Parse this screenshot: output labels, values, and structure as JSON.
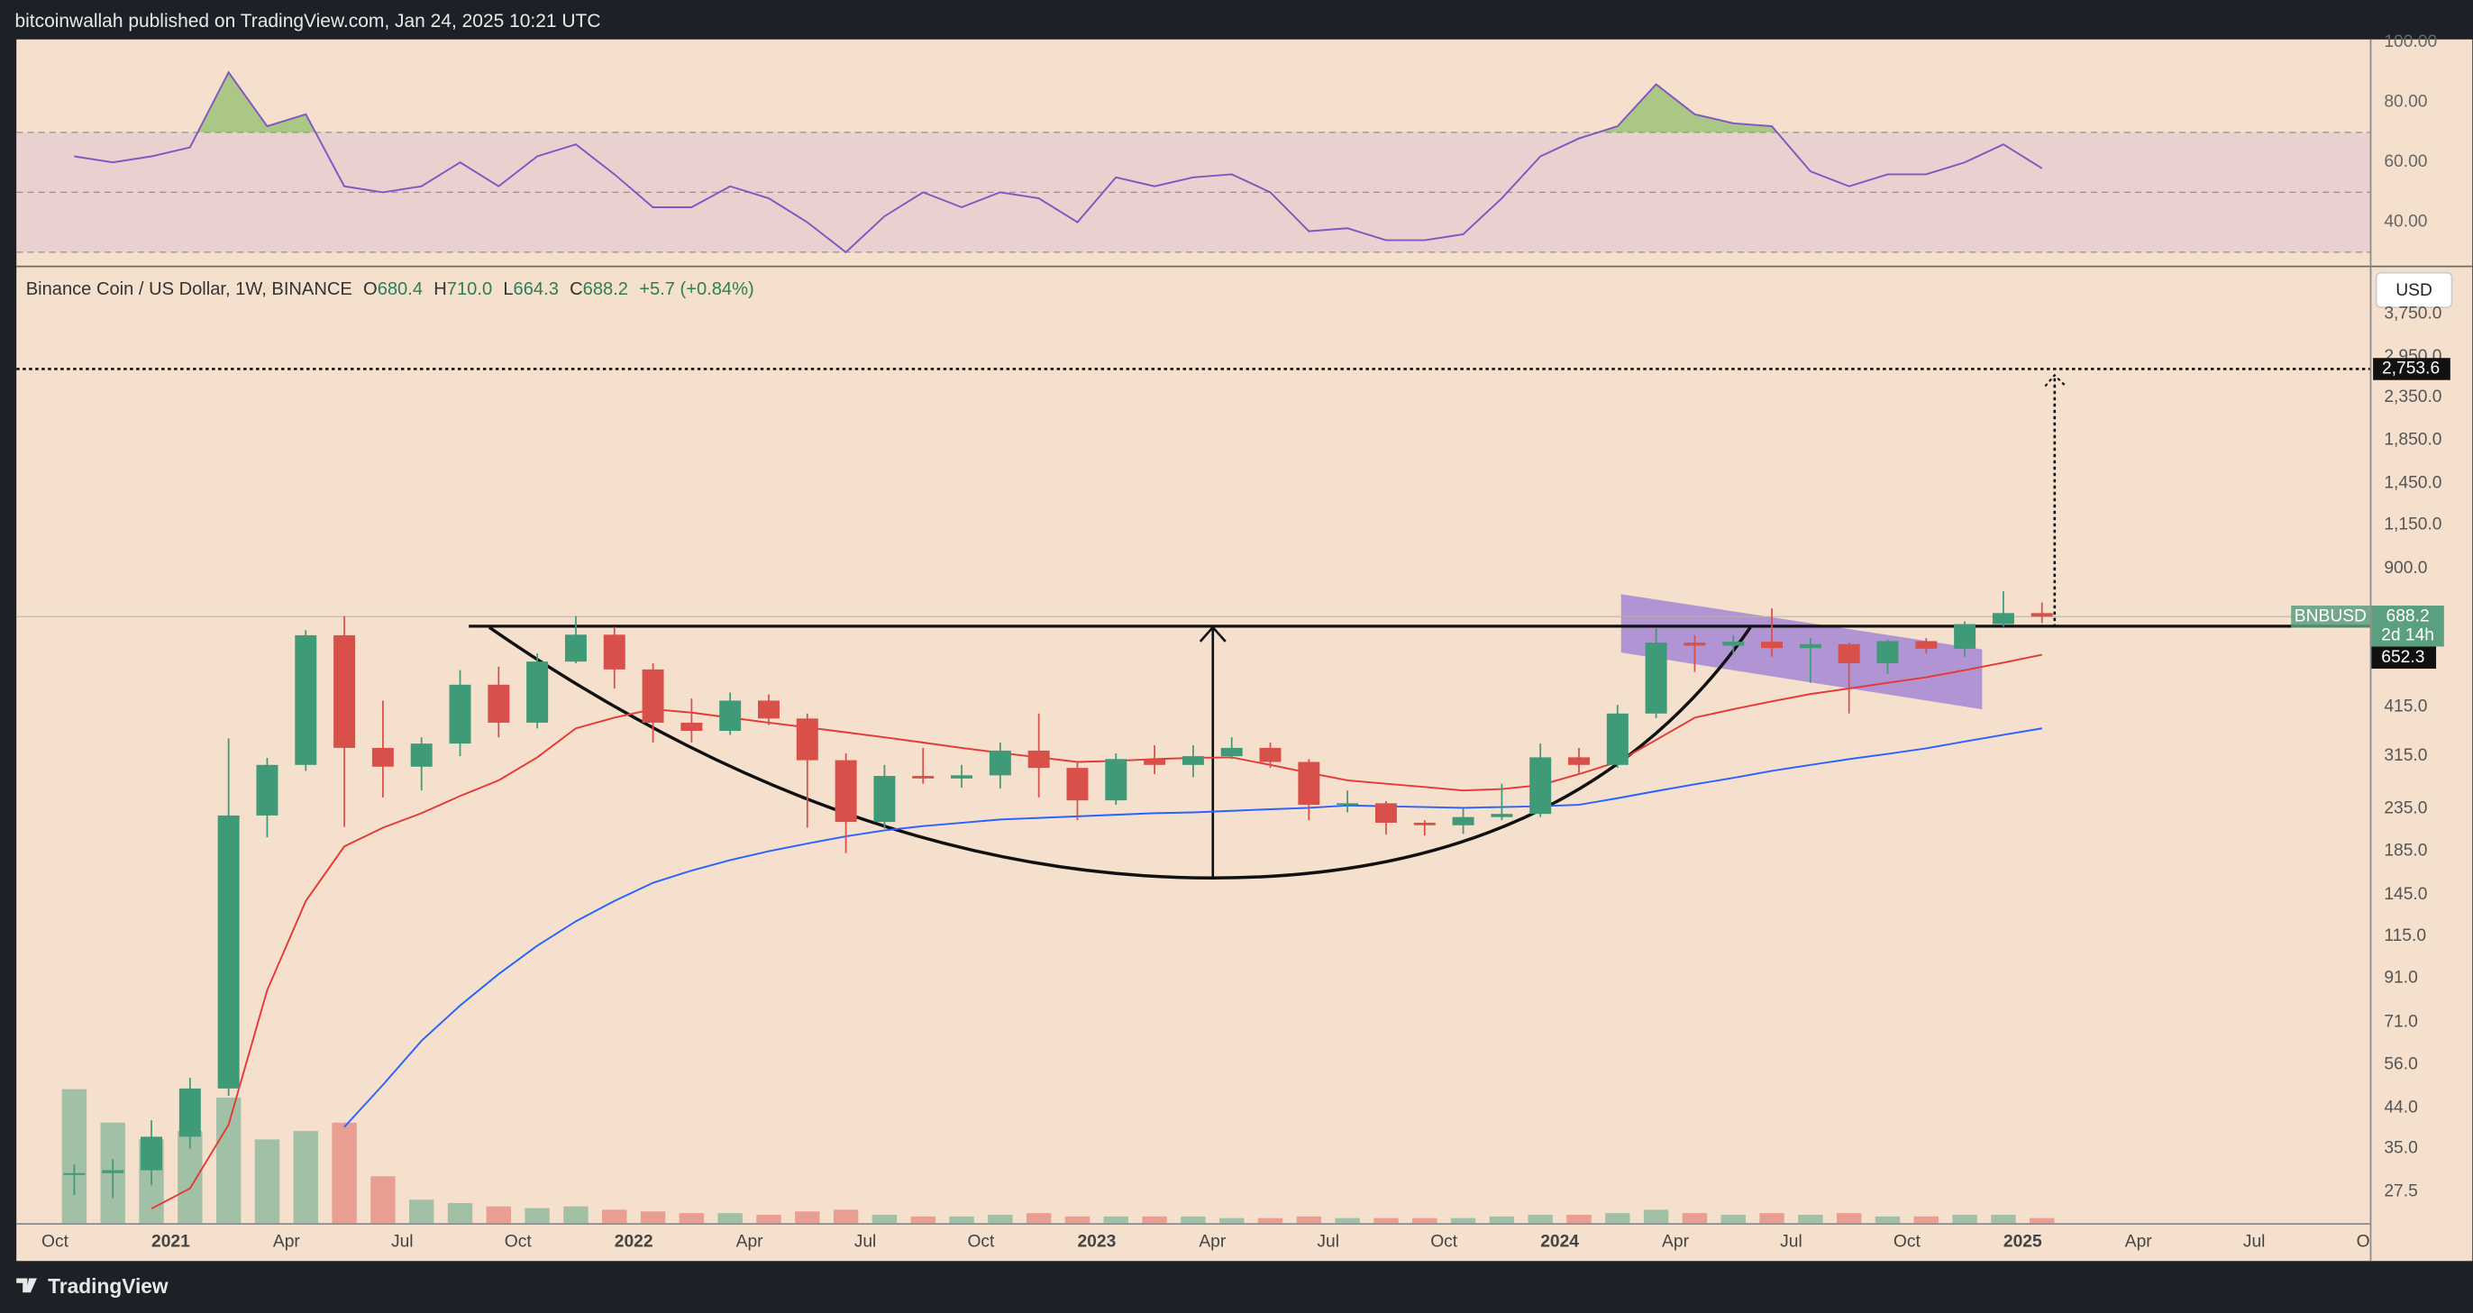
{
  "header": {
    "publisher": "bitcoinwallah published on TradingView.com, Jan 24, 2025 10:21 UTC"
  },
  "chart_data": [
    {
      "type": "candlestick",
      "title": "Binance Coin / US Dollar, 1W, BINANCE",
      "legend": [
        {
          "key": "O",
          "value": "680.4"
        },
        {
          "key": "H",
          "value": "710.0"
        },
        {
          "key": "L",
          "value": "664.3"
        },
        {
          "key": "C",
          "value": "688.2"
        }
      ],
      "change": "+5.7 (+0.84%)",
      "currency": "USD",
      "x": [
        "2020-10",
        "2020-11",
        "2020-12",
        "2021-01",
        "2021-02",
        "2021-03",
        "2021-04",
        "2021-05",
        "2021-06",
        "2021-07",
        "2021-08",
        "2021-09",
        "2021-10",
        "2021-11",
        "2021-12",
        "2022-01",
        "2022-02",
        "2022-03",
        "2022-04",
        "2022-05",
        "2022-06",
        "2022-07",
        "2022-08",
        "2022-09",
        "2022-10",
        "2022-11",
        "2022-12",
        "2023-01",
        "2023-02",
        "2023-03",
        "2023-04",
        "2023-05",
        "2023-06",
        "2023-07",
        "2023-08",
        "2023-09",
        "2023-10",
        "2023-11",
        "2023-12",
        "2024-01",
        "2024-02",
        "2024-03",
        "2024-04",
        "2024-05",
        "2024-06",
        "2024-07",
        "2024-08",
        "2024-09",
        "2024-10",
        "2024-11",
        "2024-12",
        "2025-01"
      ],
      "open": [
        30.2,
        30.5,
        31,
        37.4,
        49,
        226,
        300,
        620,
        330,
        297,
        338,
        470,
        380,
        535,
        622,
        512,
        380,
        363,
        430,
        389,
        308,
        218,
        282,
        278,
        283,
        325,
        295,
        246,
        310,
        300,
        315,
        330,
        305,
        240,
        242,
        217,
        214,
        224,
        228,
        313,
        300,
        400,
        595,
        585,
        598,
        577,
        590,
        530,
        600,
        575,
        660,
        702
      ],
      "high": [
        32,
        33,
        41,
        52,
        348,
        312,
        638,
        690,
        430,
        350,
        510,
        520,
        560,
        690,
        650,
        530,
        435,
        450,
        445,
        400,
        320,
        300,
        330,
        300,
        340,
        400,
        305,
        320,
        335,
        335,
        350,
        340,
        310,
        260,
        245,
        220,
        235,
        270,
        338,
        330,
        420,
        645,
        620,
        620,
        720,
        610,
        595,
        605,
        610,
        670,
        793,
        745
      ],
      "low": [
        27,
        26.5,
        28.5,
        35,
        47,
        200,
        290,
        212,
        250,
        260,
        315,
        350,
        368,
        530,
        460,
        340,
        340,
        355,
        375,
        211,
        183,
        210,
        270,
        264,
        263,
        250,
        220,
        240,
        285,
        280,
        310,
        295,
        220,
        230,
        203,
        202,
        204,
        220,
        224,
        284,
        295,
        390,
        505,
        560,
        550,
        475,
        400,
        500,
        560,
        550,
        650,
        664
      ],
      "close": [
        30.5,
        31,
        37.4,
        49,
        226,
        300,
        620,
        330,
        297,
        338,
        470,
        380,
        535,
        622,
        512,
        380,
        363,
        430,
        389,
        308,
        218,
        282,
        278,
        283,
        325,
        295,
        246,
        310,
        300,
        315,
        330,
        305,
        240,
        242,
        217,
        214,
        224,
        228,
        313,
        300,
        400,
        595,
        585,
        598,
        577,
        590,
        530,
        600,
        575,
        660,
        702,
        688.2
      ],
      "volume": [
        80,
        60,
        50,
        55,
        75,
        50,
        55,
        60,
        28,
        14,
        12,
        10,
        9,
        10,
        8,
        7,
        6,
        6,
        5,
        7,
        8,
        5,
        4,
        4,
        5,
        6,
        4,
        4,
        4,
        4,
        3,
        3,
        4,
        3,
        3,
        3,
        3,
        4,
        5,
        5,
        6,
        8,
        6,
        5,
        6,
        5,
        6,
        4,
        4,
        5,
        5,
        3
      ],
      "up_color": "#3f9a78",
      "down_color": "#d9504a",
      "series": [
        {
          "color": "#e53935",
          "values": [
            null,
            null,
            25,
            28,
            40,
            85,
            140,
            190,
            211,
            229,
            252,
            275,
            313,
            368,
            391,
            410,
            402,
            391,
            380,
            370,
            360,
            350,
            340,
            330,
            321,
            313,
            305,
            307,
            310,
            312,
            313,
            300,
            287,
            275,
            270,
            265,
            260,
            262,
            268,
            285,
            305,
            345,
            391,
            410,
            428,
            446,
            460,
            475,
            490,
            510,
            532,
            556
          ]
        },
        {
          "color": "#2962ff",
          "values": [
            null,
            null,
            null,
            null,
            null,
            null,
            null,
            39.5,
            50,
            64,
            78,
            93,
            109,
            125,
            140,
            155,
            166,
            176,
            185,
            193,
            201,
            208,
            213,
            217,
            221,
            223,
            225,
            227,
            229,
            230,
            232,
            234,
            236,
            239,
            238,
            237,
            236,
            237,
            238,
            240,
            249,
            259,
            269,
            279,
            290,
            300,
            310,
            319,
            329,
            342,
            355,
            368
          ]
        }
      ],
      "log_scale": true,
      "ylim": [
        23.05,
        4849
      ],
      "yticks": [
        27.5,
        {
          "value": 35,
          "label": "35.0"
        },
        {
          "value": 44,
          "label": "44.0"
        },
        {
          "value": 56,
          "label": "56.0"
        },
        {
          "value": 71,
          "label": "71.0"
        },
        {
          "value": 91,
          "label": "91.0"
        },
        {
          "value": 115,
          "label": "115.0"
        },
        {
          "value": 145,
          "label": "145.0"
        },
        {
          "value": 185,
          "label": "185.0"
        },
        {
          "value": 235,
          "label": "235.0"
        },
        {
          "value": 315,
          "label": "315.0"
        },
        {
          "value": 415,
          "label": "415.0"
        },
        {
          "value": 900,
          "label": "900.0"
        },
        {
          "value": 1150,
          "label": "1,150.0"
        },
        {
          "value": 1450,
          "label": "1,450.0"
        },
        {
          "value": 1850,
          "label": "1,850.0"
        },
        {
          "value": 2350,
          "label": "2,350.0"
        },
        {
          "value": 2950,
          "label": "2,950.0"
        },
        {
          "value": 3750,
          "label": "3,750.0"
        }
      ],
      "xlim": [
        "2020-09",
        "2025-10"
      ],
      "xticks": [
        {
          "value": "2020-10",
          "label": "Oct"
        },
        {
          "value": "2021-01",
          "label": "2021"
        },
        {
          "value": "2021-04",
          "label": "Apr"
        },
        {
          "value": "2021-07",
          "label": "Jul"
        },
        {
          "value": "2021-10",
          "label": "Oct"
        },
        {
          "value": "2022-01",
          "label": "2022"
        },
        {
          "value": "2022-04",
          "label": "Apr"
        },
        {
          "value": "2022-07",
          "label": "Jul"
        },
        {
          "value": "2022-10",
          "label": "Oct"
        },
        {
          "value": "2023-01",
          "label": "2023"
        },
        {
          "value": "2023-04",
          "label": "Apr"
        },
        {
          "value": "2023-07",
          "label": "Jul"
        },
        {
          "value": "2023-10",
          "label": "Oct"
        },
        {
          "value": "2024-01",
          "label": "2024"
        },
        {
          "value": "2024-04",
          "label": "Apr"
        },
        {
          "value": "2024-07",
          "label": "Jul"
        },
        {
          "value": "2024-10",
          "label": "Oct"
        },
        {
          "value": "2025-01",
          "label": "2025"
        },
        {
          "value": "2025-04",
          "label": "Apr"
        },
        {
          "value": "2025-07",
          "label": "Jul"
        },
        {
          "value": "2025-10",
          "label": "Oct"
        }
      ],
      "price_label": {
        "symbol": "BNBUSD",
        "value": 688.2,
        "countdown": "2d 14h",
        "color": "#5a9f7e"
      },
      "neckline": 652.3,
      "target": {
        "value": 2753.6,
        "label": "2,753.6"
      }
    },
    {
      "type": "line",
      "x": [
        "2020-10",
        "2020-11",
        "2020-12",
        "2021-01",
        "2021-02",
        "2021-03",
        "2021-04",
        "2021-05",
        "2021-06",
        "2021-07",
        "2021-08",
        "2021-09",
        "2021-10",
        "2021-11",
        "2021-12",
        "2022-01",
        "2022-02",
        "2022-03",
        "2022-04",
        "2022-05",
        "2022-06",
        "2022-07",
        "2022-08",
        "2022-09",
        "2022-10",
        "2022-11",
        "2022-12",
        "2023-01",
        "2023-02",
        "2023-03",
        "2023-04",
        "2023-05",
        "2023-06",
        "2023-07",
        "2023-08",
        "2023-09",
        "2023-10",
        "2023-11",
        "2023-12",
        "2024-01",
        "2024-02",
        "2024-03",
        "2024-04",
        "2024-05",
        "2024-06",
        "2024-07",
        "2024-08",
        "2024-09",
        "2024-10",
        "2024-11",
        "2024-12",
        "2025-01"
      ],
      "series": [
        {
          "color": "#7e57c2",
          "values": [
            62,
            60,
            62,
            65,
            90,
            72,
            76,
            52,
            50,
            52,
            60,
            52,
            62,
            66,
            56,
            45,
            45,
            52,
            48,
            40,
            30,
            42,
            50,
            45,
            50,
            48,
            40,
            55,
            52,
            55,
            56,
            50,
            37,
            38,
            34,
            34,
            36,
            48,
            62,
            68,
            72,
            86,
            76,
            73,
            72,
            57,
            52,
            56,
            56,
            60,
            66,
            58
          ]
        }
      ],
      "levels": [
        30,
        50,
        70
      ],
      "ylim": [
        25.8,
        101
      ],
      "yticks": [
        {
          "value": 40,
          "label": "40.00"
        },
        {
          "value": 60,
          "label": "60.00"
        },
        {
          "value": 80,
          "label": "80.00"
        },
        {
          "value": 100,
          "label": "100.00"
        }
      ],
      "xlim": [
        "2020-09",
        "2025-10"
      ]
    }
  ],
  "footer": {
    "brand": "TradingView"
  }
}
